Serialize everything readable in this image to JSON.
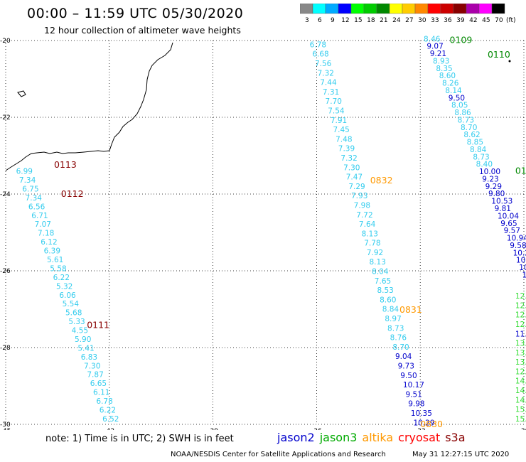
{
  "header": {
    "title": "00:00 – 11:59 UTC 05/30/2020",
    "subtitle": "12 hour collection of altimeter wave heights"
  },
  "legend": {
    "unit": "(ft)",
    "bins": [
      {
        "label": "3",
        "color": "#888888"
      },
      {
        "label": "6",
        "color": "#00ffff"
      },
      {
        "label": "9",
        "color": "#00aaff"
      },
      {
        "label": "12",
        "color": "#0000ff"
      },
      {
        "label": "15",
        "color": "#00ff00"
      },
      {
        "label": "18",
        "color": "#00cc00"
      },
      {
        "label": "21",
        "color": "#008800"
      },
      {
        "label": "24",
        "color": "#ffff00"
      },
      {
        "label": "27",
        "color": "#ffcc00"
      },
      {
        "label": "30",
        "color": "#ff8800"
      },
      {
        "label": "33",
        "color": "#ff0000"
      },
      {
        "label": "36",
        "color": "#cc0000"
      },
      {
        "label": "39",
        "color": "#880000"
      },
      {
        "label": "42",
        "color": "#aa00aa"
      },
      {
        "label": "45",
        "color": "#ff00ff"
      },
      {
        "label": "70",
        "color": "#000000"
      }
    ]
  },
  "axes": {
    "lon_ticks": [
      "-45",
      "-42",
      "-39",
      "-36",
      "-33",
      "-30"
    ],
    "lat_ticks": [
      "-20",
      "-22",
      "-24",
      "-26",
      "-28",
      "-30"
    ],
    "lon_range": [
      -45,
      -30
    ],
    "lat_range": [
      -30,
      -20
    ]
  },
  "colors": {
    "cyan": "#33ccee",
    "navy": "#0000cc",
    "green": "#33dd33",
    "orange": "#ff9900",
    "maroon": "#880000",
    "darkgreen": "#008800"
  },
  "passes": [
    {
      "label": "0109",
      "color": "#008800",
      "lon": -32.15,
      "lat": -19.97
    },
    {
      "label": "0110",
      "color": "#008800",
      "lon": -31.05,
      "lat": -20.35
    },
    {
      "label": "0111",
      "color": "#008800",
      "lon": -30.25,
      "lat": -23.38
    },
    {
      "label": "0832",
      "color": "#ff9900",
      "lon": -34.45,
      "lat": -23.63
    },
    {
      "label": "0831",
      "color": "#ff9900",
      "lon": -33.6,
      "lat": -27.0
    },
    {
      "label": "0830",
      "color": "#ff9900",
      "lon": -33.0,
      "lat": -29.98
    },
    {
      "label": "0113",
      "color": "#880000",
      "lon": -43.6,
      "lat": -23.22
    },
    {
      "label": "0112",
      "color": "#880000",
      "lon": -43.4,
      "lat": -23.98
    },
    {
      "label": "0111",
      "color": "#880000",
      "lon": -42.65,
      "lat": -27.4
    }
  ],
  "track_mid": [
    {
      "v": "6.78",
      "c": "#33ccee"
    },
    {
      "v": "6.68",
      "c": "#33ccee"
    },
    {
      "v": "7.56",
      "c": "#33ccee"
    },
    {
      "v": "7.32",
      "c": "#33ccee"
    },
    {
      "v": "7.44",
      "c": "#33ccee"
    },
    {
      "v": "7.31",
      "c": "#33ccee"
    },
    {
      "v": "7.70",
      "c": "#33ccee"
    },
    {
      "v": "7.54",
      "c": "#33ccee"
    },
    {
      "v": "7.91",
      "c": "#33ccee"
    },
    {
      "v": "7.45",
      "c": "#33ccee"
    },
    {
      "v": "7.48",
      "c": "#33ccee"
    },
    {
      "v": "7.39",
      "c": "#33ccee"
    },
    {
      "v": "7.32",
      "c": "#33ccee"
    },
    {
      "v": "7.30",
      "c": "#33ccee"
    },
    {
      "v": "7.47",
      "c": "#33ccee"
    },
    {
      "v": "7.29",
      "c": "#33ccee"
    },
    {
      "v": "7.93",
      "c": "#33ccee"
    },
    {
      "v": "7.98",
      "c": "#33ccee"
    },
    {
      "v": "7.72",
      "c": "#33ccee"
    },
    {
      "v": "7.64",
      "c": "#33ccee"
    },
    {
      "v": "8.13",
      "c": "#33ccee"
    },
    {
      "v": "7.78",
      "c": "#33ccee"
    },
    {
      "v": "7.92",
      "c": "#33ccee"
    },
    {
      "v": "8.13",
      "c": "#33ccee"
    },
    {
      "v": "8.04",
      "c": "#33ccee"
    },
    {
      "v": "7.65",
      "c": "#33ccee"
    },
    {
      "v": "8.53",
      "c": "#33ccee"
    },
    {
      "v": "8.60",
      "c": "#33ccee"
    },
    {
      "v": "8.84",
      "c": "#33ccee"
    },
    {
      "v": "8.97",
      "c": "#33ccee"
    },
    {
      "v": "8.73",
      "c": "#33ccee"
    },
    {
      "v": "8.76",
      "c": "#33ccee"
    },
    {
      "v": "8.70",
      "c": "#33ccee"
    },
    {
      "v": "9.04",
      "c": "#0000cc"
    },
    {
      "v": "9.73",
      "c": "#0000cc"
    },
    {
      "v": "9.50",
      "c": "#0000cc"
    },
    {
      "v": "10.17",
      "c": "#0000cc"
    },
    {
      "v": "9.51",
      "c": "#0000cc"
    },
    {
      "v": "9.98",
      "c": "#0000cc"
    },
    {
      "v": "10.35",
      "c": "#0000cc"
    },
    {
      "v": "10.29",
      "c": "#0000cc"
    }
  ],
  "track_left": [
    {
      "v": "6.99",
      "c": "#33ccee"
    },
    {
      "v": "7.34",
      "c": "#33ccee"
    },
    {
      "v": "6.75",
      "c": "#33ccee"
    },
    {
      "v": "7.34",
      "c": "#33ccee"
    },
    {
      "v": "6.56",
      "c": "#33ccee"
    },
    {
      "v": "6.71",
      "c": "#33ccee"
    },
    {
      "v": "7.07",
      "c": "#33ccee"
    },
    {
      "v": "7.18",
      "c": "#33ccee"
    },
    {
      "v": "6.12",
      "c": "#33ccee"
    },
    {
      "v": "6.39",
      "c": "#33ccee"
    },
    {
      "v": "5.61",
      "c": "#33ccee"
    },
    {
      "v": "5.58",
      "c": "#33ccee"
    },
    {
      "v": "6.22",
      "c": "#33ccee"
    },
    {
      "v": "5.32",
      "c": "#33ccee"
    },
    {
      "v": "6.06",
      "c": "#33ccee"
    },
    {
      "v": "5.54",
      "c": "#33ccee"
    },
    {
      "v": "5.68",
      "c": "#33ccee"
    },
    {
      "v": "5.33",
      "c": "#33ccee"
    },
    {
      "v": "4.55",
      "c": "#33ccee"
    },
    {
      "v": "5.90",
      "c": "#33ccee"
    },
    {
      "v": "5.41",
      "c": "#33ccee"
    },
    {
      "v": "6.83",
      "c": "#33ccee"
    },
    {
      "v": "7.30",
      "c": "#33ccee"
    },
    {
      "v": "7.87",
      "c": "#33ccee"
    },
    {
      "v": "6.65",
      "c": "#33ccee"
    },
    {
      "v": "6.11",
      "c": "#33ccee"
    },
    {
      "v": "6.78",
      "c": "#33ccee"
    },
    {
      "v": "6.22",
      "c": "#33ccee"
    },
    {
      "v": "6.52",
      "c": "#33ccee"
    }
  ],
  "track_right": [
    {
      "v": "8.46",
      "c": "#33ccee"
    },
    {
      "v": "9.07",
      "c": "#0000cc"
    },
    {
      "v": "9.21",
      "c": "#0000cc"
    },
    {
      "v": "8.93",
      "c": "#33ccee"
    },
    {
      "v": "8.35",
      "c": "#33ccee"
    },
    {
      "v": "8.60",
      "c": "#33ccee"
    },
    {
      "v": "8.26",
      "c": "#33ccee"
    },
    {
      "v": "8.14",
      "c": "#33ccee"
    },
    {
      "v": "9.50",
      "c": "#0000cc"
    },
    {
      "v": "8.05",
      "c": "#33ccee"
    },
    {
      "v": "8.86",
      "c": "#33ccee"
    },
    {
      "v": "8.73",
      "c": "#33ccee"
    },
    {
      "v": "8.70",
      "c": "#33ccee"
    },
    {
      "v": "8.62",
      "c": "#33ccee"
    },
    {
      "v": "8.85",
      "c": "#33ccee"
    },
    {
      "v": "8.84",
      "c": "#33ccee"
    },
    {
      "v": "8.73",
      "c": "#33ccee"
    },
    {
      "v": "8.40",
      "c": "#33ccee"
    },
    {
      "v": "10.00",
      "c": "#0000cc"
    },
    {
      "v": "9.23",
      "c": "#0000cc"
    },
    {
      "v": "9.29",
      "c": "#0000cc"
    },
    {
      "v": "9.80",
      "c": "#0000cc"
    },
    {
      "v": "10.53",
      "c": "#0000cc"
    },
    {
      "v": "9.81",
      "c": "#0000cc"
    },
    {
      "v": "10.04",
      "c": "#0000cc"
    },
    {
      "v": "9.65",
      "c": "#0000cc"
    },
    {
      "v": "9.57",
      "c": "#0000cc"
    },
    {
      "v": "10.94",
      "c": "#0000cc"
    },
    {
      "v": "9.58",
      "c": "#0000cc"
    },
    {
      "v": "10.2",
      "c": "#0000cc"
    },
    {
      "v": "10.1",
      "c": "#0000cc"
    },
    {
      "v": "10",
      "c": "#0000cc"
    },
    {
      "v": "11",
      "c": "#0000cc"
    }
  ],
  "track_far_right": [
    {
      "v": "12.",
      "c": "#33dd33"
    },
    {
      "v": "12.",
      "c": "#33dd33"
    },
    {
      "v": "12.4",
      "c": "#33dd33"
    },
    {
      "v": "12.9",
      "c": "#33dd33"
    },
    {
      "v": "11.8",
      "c": "#0000cc"
    },
    {
      "v": "13.3",
      "c": "#33dd33"
    },
    {
      "v": "13.4",
      "c": "#33dd33"
    },
    {
      "v": "13.5",
      "c": "#33dd33"
    },
    {
      "v": "12.42",
      "c": "#33dd33"
    },
    {
      "v": "14.11",
      "c": "#33dd33"
    },
    {
      "v": "14.44",
      "c": "#33dd33"
    },
    {
      "v": "14.58",
      "c": "#33dd33"
    },
    {
      "v": "15.03",
      "c": "#33dd33"
    },
    {
      "v": "15.51",
      "c": "#33dd33"
    }
  ],
  "footer": {
    "note": "note:  1) Time is in UTC;  2) SWH is in feet",
    "satellites": [
      {
        "name": "jason2",
        "color": "#0000cc"
      },
      {
        "name": "jason3",
        "color": "#00aa00"
      },
      {
        "name": "altika",
        "color": "#ff9900"
      },
      {
        "name": "cryosat",
        "color": "#ff0000"
      },
      {
        "name": "s3a",
        "color": "#880000"
      }
    ],
    "credit": "NOAA/NESDIS Center for Satellite Applications and Research",
    "timestamp": "May 31 12:27:15 UTC 2020"
  }
}
